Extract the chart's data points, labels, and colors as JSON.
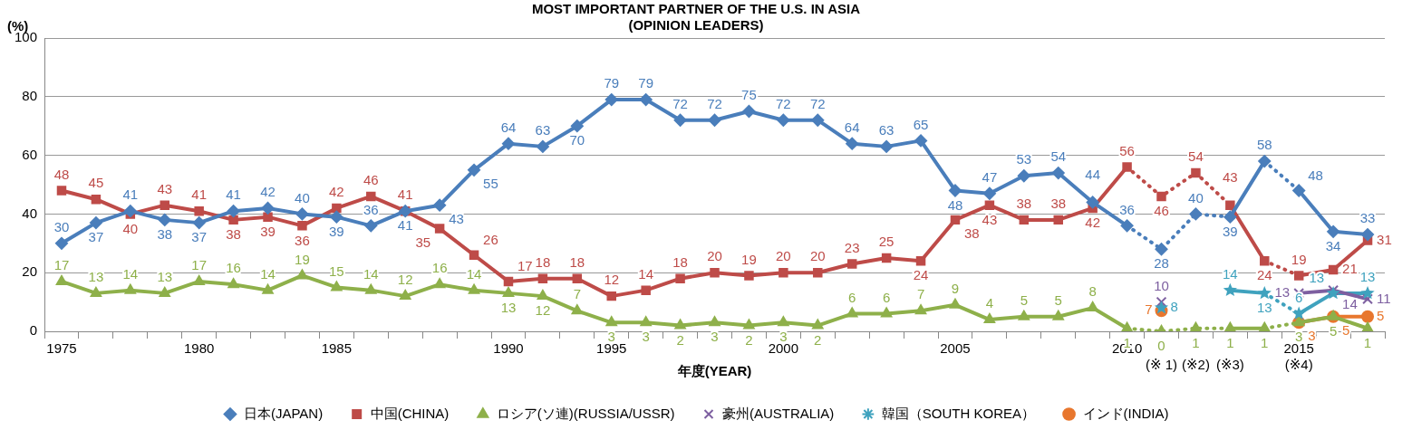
{
  "chart_data": {
    "type": "line",
    "title": "MOST IMPORTANT PARTNER OF THE U.S. IN ASIA",
    "subtitle": "(OPINION LEADERS)",
    "xlabel": "年度(YEAR)",
    "ylabel": "(%)",
    "categories": [
      "1975",
      null,
      null,
      null,
      "1980",
      null,
      null,
      null,
      "1985",
      null,
      null,
      null,
      null,
      "1990",
      null,
      null,
      "1995",
      null,
      null,
      null,
      null,
      "2000",
      null,
      null,
      null,
      null,
      "2005",
      null,
      null,
      null,
      null,
      "2010",
      "\n(※ 1)",
      "\n(※2)",
      "\n(※3)",
      null,
      "2015\n(※4)",
      null,
      null
    ],
    "series": [
      {
        "name": "日本(JAPAN)",
        "color": "#4a7ebb",
        "marker": "diamond",
        "values": [
          30,
          37,
          41,
          38,
          37,
          41,
          42,
          40,
          39,
          36,
          41,
          43,
          55,
          64,
          63,
          70,
          79,
          79,
          72,
          72,
          75,
          72,
          72,
          64,
          63,
          65,
          48,
          47,
          53,
          54,
          44,
          36,
          28,
          40,
          39,
          58,
          48,
          34,
          33
        ],
        "line_style": [
          "solid",
          "solid",
          "solid",
          "solid",
          "solid",
          "solid",
          "solid",
          "solid",
          "solid",
          "solid",
          "solid",
          "solid",
          "solid",
          "solid",
          "solid",
          "solid",
          "solid",
          "solid",
          "solid",
          "solid",
          "solid",
          "solid",
          "solid",
          "solid",
          "solid",
          "solid",
          "solid",
          "solid",
          "solid",
          "solid",
          "solid",
          "dotted",
          "dotted",
          "dotted",
          "solid",
          "dotted",
          "solid",
          "solid"
        ]
      },
      {
        "name": "中国(CHINA)",
        "color": "#be4b48",
        "marker": "square",
        "values": [
          48,
          45,
          40,
          43,
          41,
          38,
          39,
          36,
          42,
          46,
          41,
          35,
          26,
          17,
          18,
          18,
          12,
          14,
          18,
          20,
          19,
          20,
          20,
          23,
          25,
          24,
          38,
          43,
          38,
          38,
          42,
          56,
          46,
          54,
          43,
          24,
          19,
          21,
          31
        ],
        "line_style": [
          "solid",
          "solid",
          "solid",
          "solid",
          "solid",
          "solid",
          "solid",
          "solid",
          "solid",
          "solid",
          "solid",
          "solid",
          "solid",
          "solid",
          "solid",
          "solid",
          "solid",
          "solid",
          "solid",
          "solid",
          "solid",
          "solid",
          "solid",
          "solid",
          "solid",
          "solid",
          "solid",
          "solid",
          "solid",
          "solid",
          "solid",
          "dotted",
          "dotted",
          "dotted",
          "solid",
          "dotted",
          "solid",
          "solid"
        ]
      },
      {
        "name": "ロシア(ソ連)(RUSSIA/USSR)",
        "color": "#8eb04a",
        "marker": "triangle",
        "values": [
          17,
          13,
          14,
          13,
          17,
          16,
          14,
          19,
          15,
          14,
          12,
          16,
          14,
          13,
          12,
          7,
          3,
          3,
          2,
          3,
          2,
          3,
          2,
          6,
          6,
          7,
          9,
          4,
          5,
          5,
          8,
          1,
          0,
          1,
          1,
          1,
          3,
          5,
          1
        ],
        "line_style": [
          "solid",
          "solid",
          "solid",
          "solid",
          "solid",
          "solid",
          "solid",
          "solid",
          "solid",
          "solid",
          "solid",
          "solid",
          "solid",
          "solid",
          "solid",
          "solid",
          "solid",
          "solid",
          "solid",
          "solid",
          "solid",
          "solid",
          "solid",
          "solid",
          "solid",
          "solid",
          "solid",
          "solid",
          "solid",
          "solid",
          "solid",
          "dotted",
          "dotted",
          "dotted",
          "solid",
          "dotted",
          "solid",
          "solid"
        ]
      },
      {
        "name": "豪州(AUSTRALIA)",
        "color": "#7d5fa0",
        "marker": "cross",
        "values": [
          null,
          null,
          null,
          null,
          null,
          null,
          null,
          null,
          null,
          null,
          null,
          null,
          null,
          null,
          null,
          null,
          null,
          null,
          null,
          null,
          null,
          null,
          null,
          null,
          null,
          null,
          null,
          null,
          null,
          null,
          null,
          null,
          10,
          null,
          null,
          null,
          13,
          14,
          11
        ]
      },
      {
        "name": "韓国（SOUTH KOREA）",
        "color": "#3fa2be",
        "marker": "star",
        "values": [
          null,
          null,
          null,
          null,
          null,
          null,
          null,
          null,
          null,
          null,
          null,
          null,
          null,
          null,
          null,
          null,
          null,
          null,
          null,
          null,
          null,
          null,
          null,
          null,
          null,
          null,
          null,
          null,
          null,
          null,
          null,
          null,
          8,
          null,
          14,
          13,
          6,
          13,
          13
        ],
        "line_style": [
          null,
          null,
          null,
          null,
          null,
          null,
          null,
          null,
          null,
          null,
          null,
          null,
          null,
          null,
          null,
          null,
          null,
          null,
          null,
          null,
          null,
          null,
          null,
          null,
          null,
          null,
          null,
          null,
          null,
          null,
          null,
          null,
          null,
          null,
          "solid",
          "dotted",
          "solid",
          "solid"
        ]
      },
      {
        "name": "インド(INDIA)",
        "color": "#e8772e",
        "marker": "circle",
        "values": [
          null,
          null,
          null,
          null,
          null,
          null,
          null,
          null,
          null,
          null,
          null,
          null,
          null,
          null,
          null,
          null,
          null,
          null,
          null,
          null,
          null,
          null,
          null,
          null,
          null,
          null,
          null,
          null,
          null,
          null,
          null,
          null,
          7,
          null,
          null,
          null,
          3,
          5,
          5
        ]
      }
    ],
    "ylim": [
      0,
      100
    ],
    "yticks": [
      0,
      20,
      40,
      60,
      80,
      100
    ],
    "grid": "y",
    "legend": "bottom",
    "data_labels": true
  }
}
